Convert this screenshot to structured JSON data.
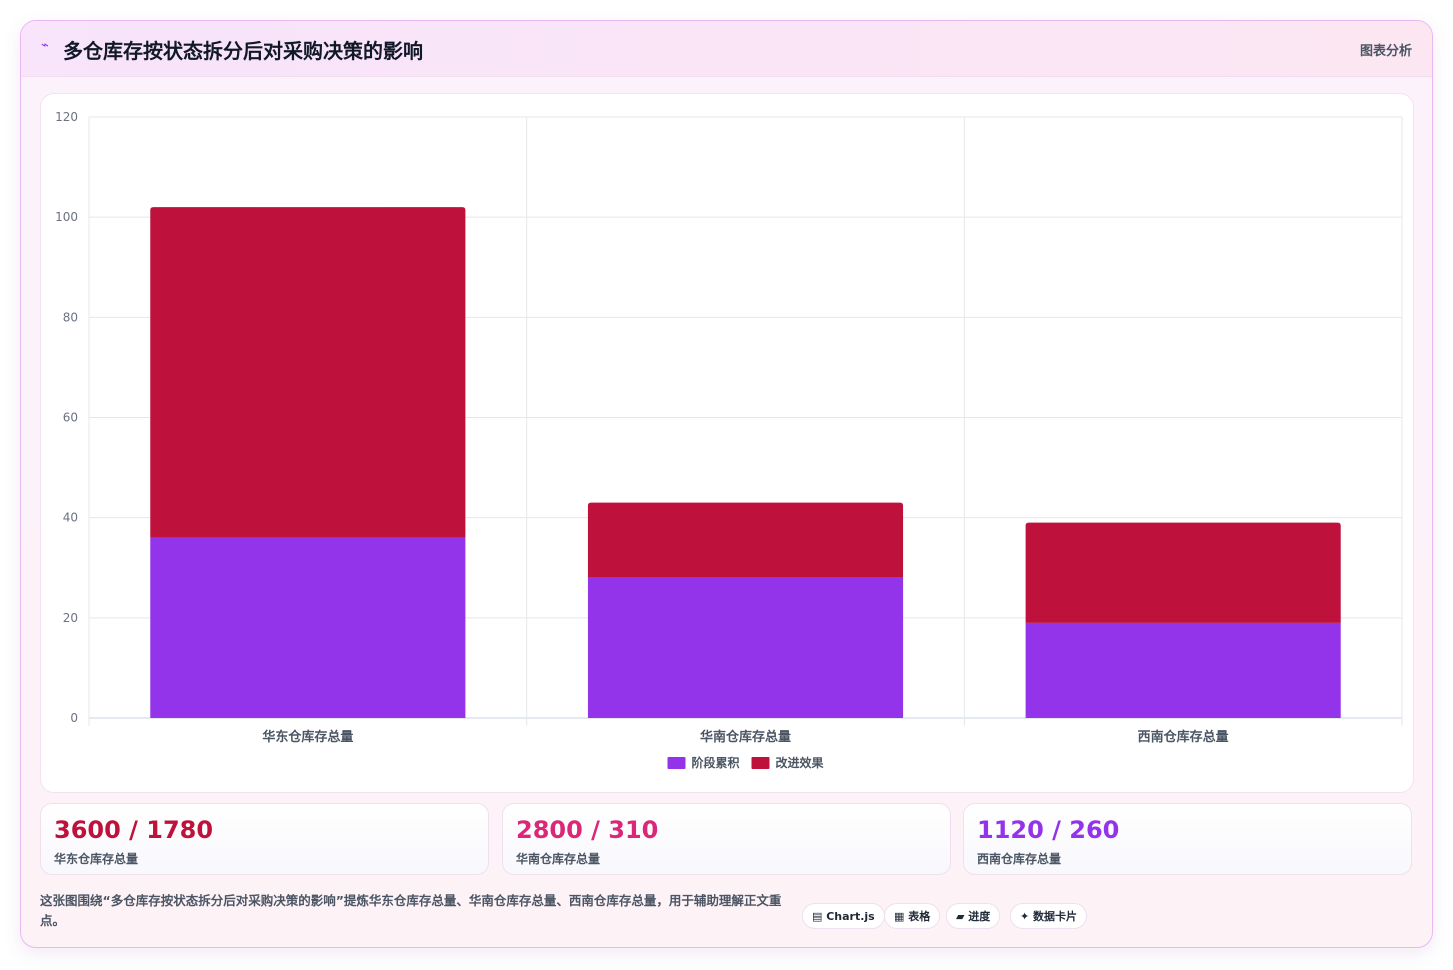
{
  "header": {
    "icon": "sparkline-icon",
    "title": "多仓库存按状态拆分后对采购决策的影响",
    "tag": "图表分析"
  },
  "chart_data": {
    "type": "bar",
    "stacked": true,
    "categories": [
      "华东仓库存总量",
      "华南仓库存总量",
      "西南仓库存总量"
    ],
    "series": [
      {
        "name": "阶段累积",
        "values": [
          36,
          28,
          19
        ],
        "color": "#9333ea"
      },
      {
        "name": "改进效果",
        "values": [
          66,
          15,
          20
        ],
        "color": "#be123c"
      }
    ],
    "ylim": [
      0,
      120
    ],
    "yticks": [
      0,
      20,
      40,
      60,
      80,
      100,
      120
    ],
    "grid": true,
    "legend": "bottom"
  },
  "stats": [
    {
      "value": "3600 / 1780",
      "label": "华东仓库存总量",
      "color": "#be123c"
    },
    {
      "value": "2800 / 310",
      "label": "华南仓库存总量",
      "color": "#db2777"
    },
    {
      "value": "1120 / 260",
      "label": "西南仓库存总量",
      "color": "#9333ea"
    }
  ],
  "footer": {
    "text": "这张图围绕“多仓库存按状态拆分后对采购决策的影响”提炼华东仓库存总量、华南仓库存总量、西南仓库存总量，用于辅助理解正文重点。"
  },
  "pills": [
    {
      "icon": "chart-icon",
      "label": "▤ Chart.js"
    },
    {
      "icon": "table-icon",
      "label": "▦ 表格"
    },
    {
      "icon": "progress-icon",
      "label": "▰ 进度"
    },
    {
      "icon": "card-icon",
      "label": "✦ 数据卡片"
    }
  ]
}
